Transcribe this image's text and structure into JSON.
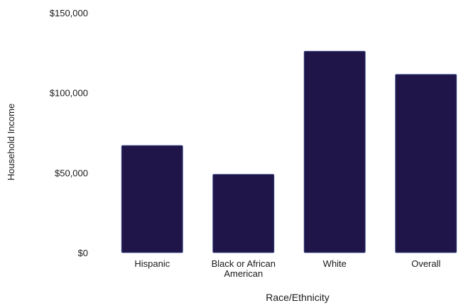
{
  "chart_data": {
    "type": "bar",
    "title": "",
    "xlabel": "Race/Ethnicity",
    "ylabel": "Household Income",
    "categories": [
      "Hispanic",
      "Black or African American",
      "White",
      "Overall"
    ],
    "category_label_lines": [
      [
        "Hispanic"
      ],
      [
        "Black or African",
        "American"
      ],
      [
        "White"
      ],
      [
        "Overall"
      ]
    ],
    "values": [
      67000,
      49000,
      126000,
      111500
    ],
    "ylim": [
      0,
      150000
    ],
    "yticks": [
      0,
      50000,
      100000,
      150000
    ],
    "ytick_labels": [
      "$0",
      "$50,000",
      "$100,000",
      "$150,000"
    ],
    "grid": false,
    "legend": "none",
    "bar_color": "#201549",
    "bar_edge_color": "#3b4e8f"
  }
}
